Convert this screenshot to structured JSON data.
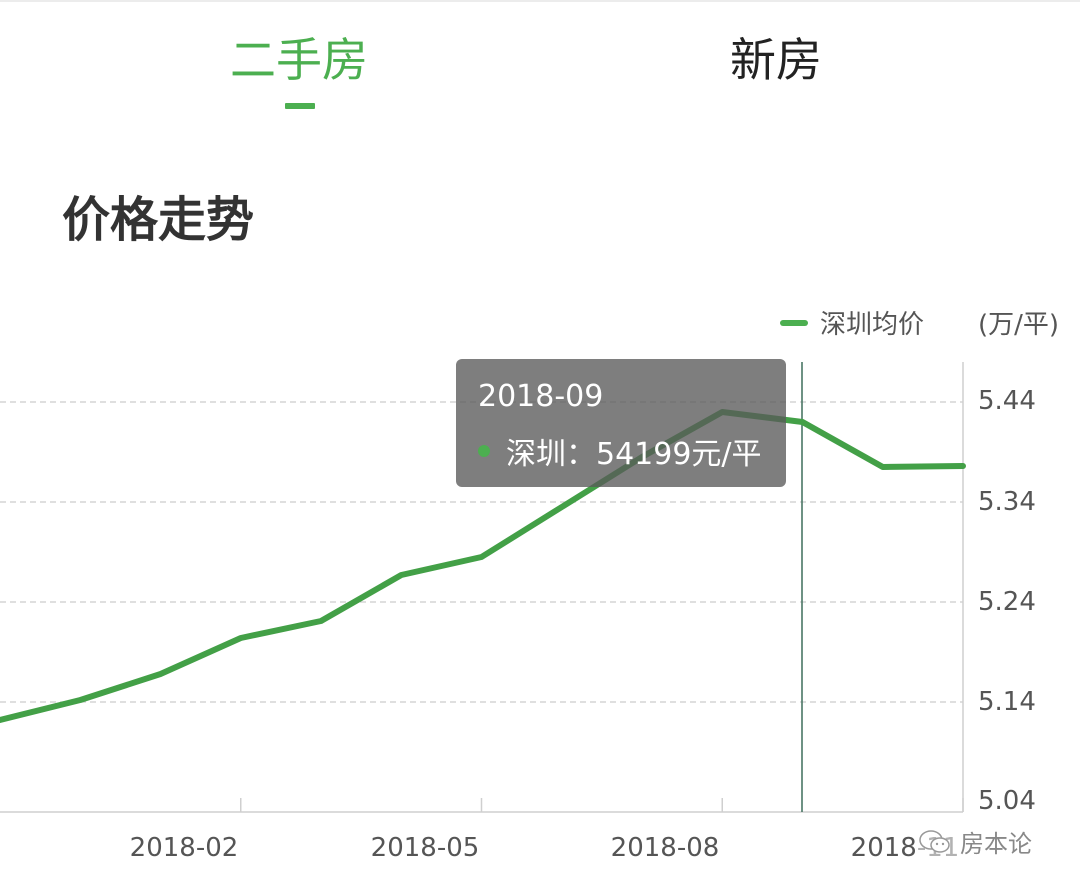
{
  "tabs": [
    {
      "label": "二手房",
      "active": true
    },
    {
      "label": "新房",
      "active": false
    }
  ],
  "section_title": "价格走势",
  "colors": {
    "accent": "#4caf50",
    "line": "#43a047",
    "grid": "#cccccc",
    "axis": "#cfcfcf",
    "tooltip_bg": "#5a5a5a",
    "text": "#555555",
    "title": "#333333"
  },
  "legend": {
    "label": "深圳均价",
    "unit": "(万/平)"
  },
  "tooltip": {
    "title": "2018-09",
    "series_label": "深圳：",
    "value_text": "54199元/平"
  },
  "y_axis": {
    "ticks": [
      "5.44",
      "5.34",
      "5.24",
      "5.14",
      "5.04"
    ]
  },
  "x_axis": {
    "ticks": [
      "2018-02",
      "2018-05",
      "2018-08",
      "2018-11"
    ]
  },
  "watermark": {
    "text": "房本论"
  },
  "chart_data": {
    "type": "line",
    "title": "价格走势",
    "xlabel": "",
    "ylabel": "(万/平)",
    "legend_position": "top-right",
    "grid": true,
    "ylim": [
      5.04,
      5.46
    ],
    "y_ticks": [
      5.04,
      5.14,
      5.24,
      5.34,
      5.44
    ],
    "x_tick_labels": [
      "2018-02",
      "2018-05",
      "2018-08",
      "2018-11"
    ],
    "x": [
      "2017-11",
      "2017-12",
      "2018-01",
      "2018-02",
      "2018-03",
      "2018-04",
      "2018-05",
      "2018-06",
      "2018-07",
      "2018-08",
      "2018-09",
      "2018-10",
      "2018-11"
    ],
    "series": [
      {
        "name": "深圳均价",
        "color": "#43a047",
        "values": [
          5.122,
          5.142,
          5.168,
          5.204,
          5.221,
          5.267,
          5.285,
          5.335,
          5.385,
          5.43,
          5.42,
          5.375,
          5.376
        ]
      }
    ],
    "annotations": [
      {
        "type": "tooltip",
        "x": "2018-09",
        "text": "深圳：54199元/平"
      }
    ]
  }
}
